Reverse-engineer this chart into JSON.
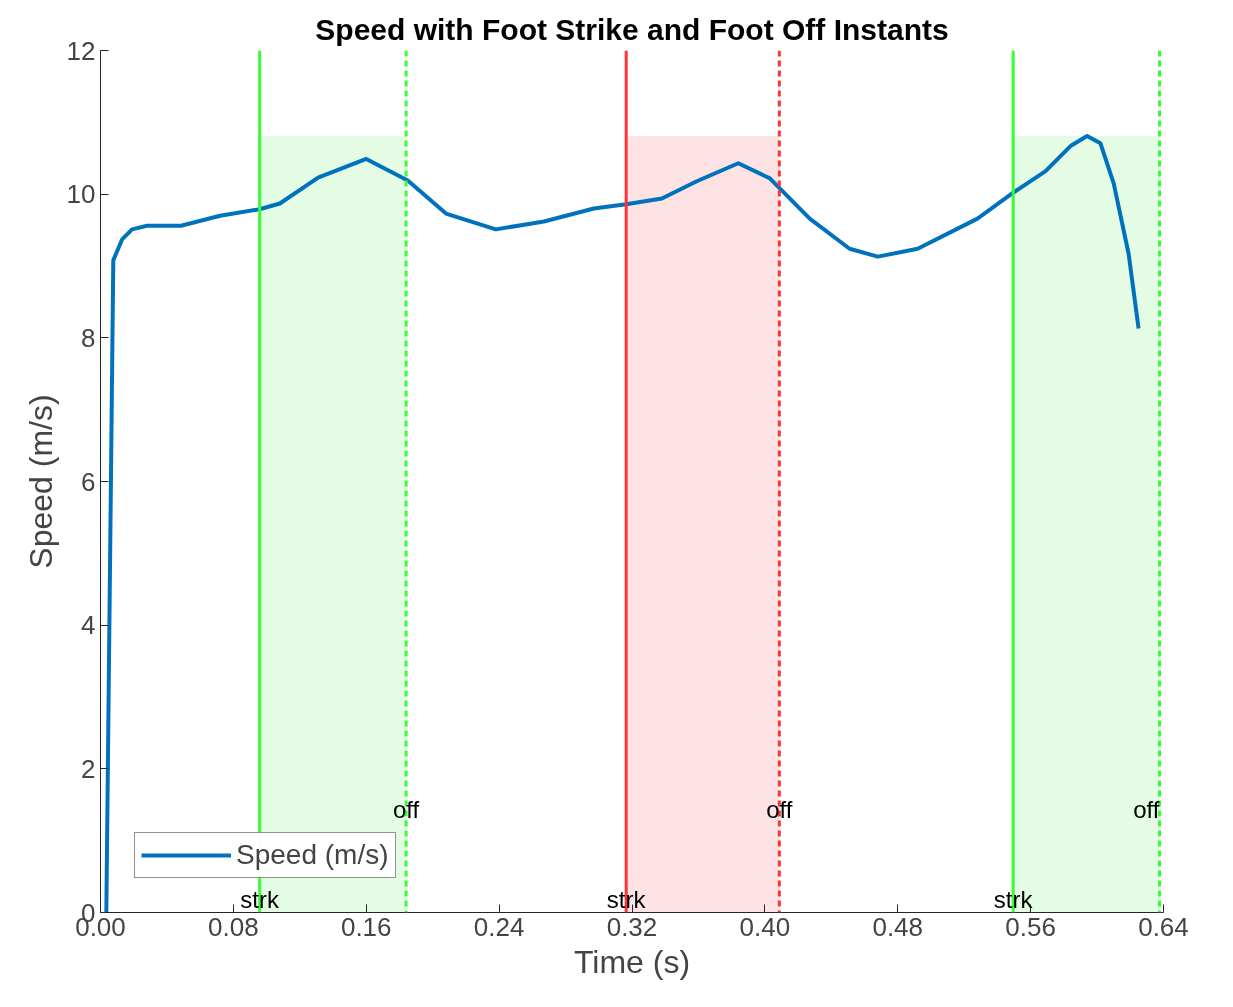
{
  "chart_data": {
    "type": "line",
    "title": "Speed with Foot Strike and Foot Off Instants",
    "xlabel": "Time (s)",
    "ylabel": "Speed (m/s)",
    "series": [
      {
        "name": "Speed (m/s)",
        "color": "#0072bd",
        "x": [
          0.0035,
          0.0077,
          0.013,
          0.019,
          0.028,
          0.0485,
          0.072,
          0.0958,
          0.108,
          0.131,
          0.16,
          0.185,
          0.208,
          0.238,
          0.267,
          0.297,
          0.3165,
          0.338,
          0.359,
          0.384,
          0.403,
          0.427,
          0.451,
          0.468,
          0.492,
          0.528,
          0.5495,
          0.569,
          0.584,
          0.594,
          0.602,
          0.61,
          0.619,
          0.625
        ],
        "values": [
          0,
          9.08,
          9.37,
          9.51,
          9.56,
          9.56,
          9.7,
          9.79,
          9.87,
          10.23,
          10.49,
          10.19,
          9.73,
          9.51,
          9.62,
          9.8,
          9.86,
          9.94,
          10.18,
          10.43,
          10.22,
          9.66,
          9.24,
          9.13,
          9.24,
          9.66,
          10.02,
          10.32,
          10.67,
          10.81,
          10.71,
          10.15,
          9.17,
          8.13
        ]
      }
    ],
    "xlim": [
      0,
      0.64
    ],
    "ylim": [
      0,
      12
    ],
    "xticks": [
      {
        "value": 0,
        "label": "0.00"
      },
      {
        "value": 0.08,
        "label": "0.08"
      },
      {
        "value": 0.16,
        "label": "0.16"
      },
      {
        "value": 0.24,
        "label": "0.24"
      },
      {
        "value": 0.32,
        "label": "0.32"
      },
      {
        "value": 0.4,
        "label": "0.40"
      },
      {
        "value": 0.48,
        "label": "0.48"
      },
      {
        "value": 0.56,
        "label": "0.56"
      },
      {
        "value": 0.64,
        "label": "0.64"
      }
    ],
    "yticks": [
      0,
      2,
      4,
      6,
      8,
      10,
      12
    ],
    "bands": [
      {
        "axis": "x",
        "from": 0.0958,
        "to": 0.184,
        "color": "#e3fce3"
      },
      {
        "axis": "x",
        "from": 0.3165,
        "to": 0.4087,
        "color": "#fde3e3"
      },
      {
        "axis": "x",
        "from": 0.5495,
        "to": 0.6376,
        "color": "#e3fce3"
      }
    ],
    "ref_lines": [
      {
        "axis": "x",
        "value": 0.0958,
        "color": "#33ff33",
        "line_style": "solid"
      },
      {
        "axis": "x",
        "value": 0.184,
        "color": "#33ff33",
        "line_style": "dashed"
      },
      {
        "axis": "x",
        "value": 0.3165,
        "color": "#ff3333",
        "line_style": "solid"
      },
      {
        "axis": "x",
        "value": 0.4087,
        "color": "#ff3333",
        "line_style": "dashed"
      },
      {
        "axis": "x",
        "value": 0.5495,
        "color": "#33ff33",
        "line_style": "solid"
      },
      {
        "axis": "x",
        "value": 0.6376,
        "color": "#33ff33",
        "line_style": "dashed"
      }
    ],
    "annotations": [
      {
        "text": "strk",
        "x": 0.0958,
        "y": 0
      },
      {
        "text": "off",
        "x": 0.184,
        "y": 1.25
      },
      {
        "text": "strk",
        "x": 0.3165,
        "y": 0
      },
      {
        "text": "off",
        "x": 0.4087,
        "y": 1.25
      },
      {
        "text": "strk",
        "x": 0.5495,
        "y": 0
      },
      {
        "text": "off",
        "x": 0.6376,
        "y": 1.25
      }
    ],
    "grid": false,
    "legend": "bottom left",
    "marker": "none",
    "line_style": "solid"
  }
}
